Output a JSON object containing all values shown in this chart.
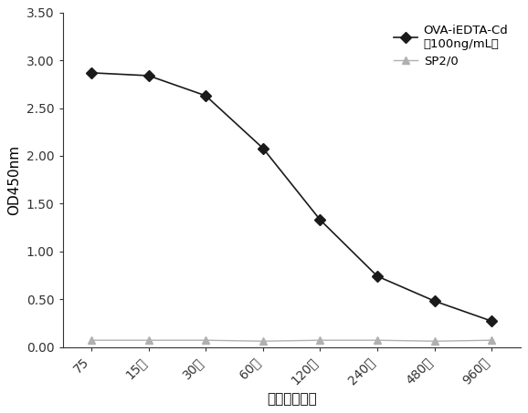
{
  "x_labels": [
    "75",
    "15万",
    "30万",
    "60万",
    "120万",
    "240万",
    "480万",
    "960万"
  ],
  "ova_values": [
    2.87,
    2.84,
    2.63,
    2.08,
    1.33,
    0.74,
    0.48,
    0.27
  ],
  "sp2_values": [
    0.07,
    0.07,
    0.07,
    0.06,
    0.07,
    0.07,
    0.06,
    0.07
  ],
  "ova_color": "#1a1a1a",
  "sp2_color": "#b0b0b0",
  "ylabel": "OD450nm",
  "xlabel": "抗体稀释倍数",
  "ylim": [
    0.0,
    3.5
  ],
  "yticks": [
    0.0,
    0.5,
    1.0,
    1.5,
    2.0,
    2.5,
    3.0,
    3.5
  ],
  "legend_ova_line1": "OVA-iEDTA-Cd",
  "legend_ova_line2": "（100ng/mL）",
  "legend_sp2": "SP2/0",
  "axis_fontsize": 11,
  "tick_fontsize": 10,
  "legend_fontsize": 9.5
}
